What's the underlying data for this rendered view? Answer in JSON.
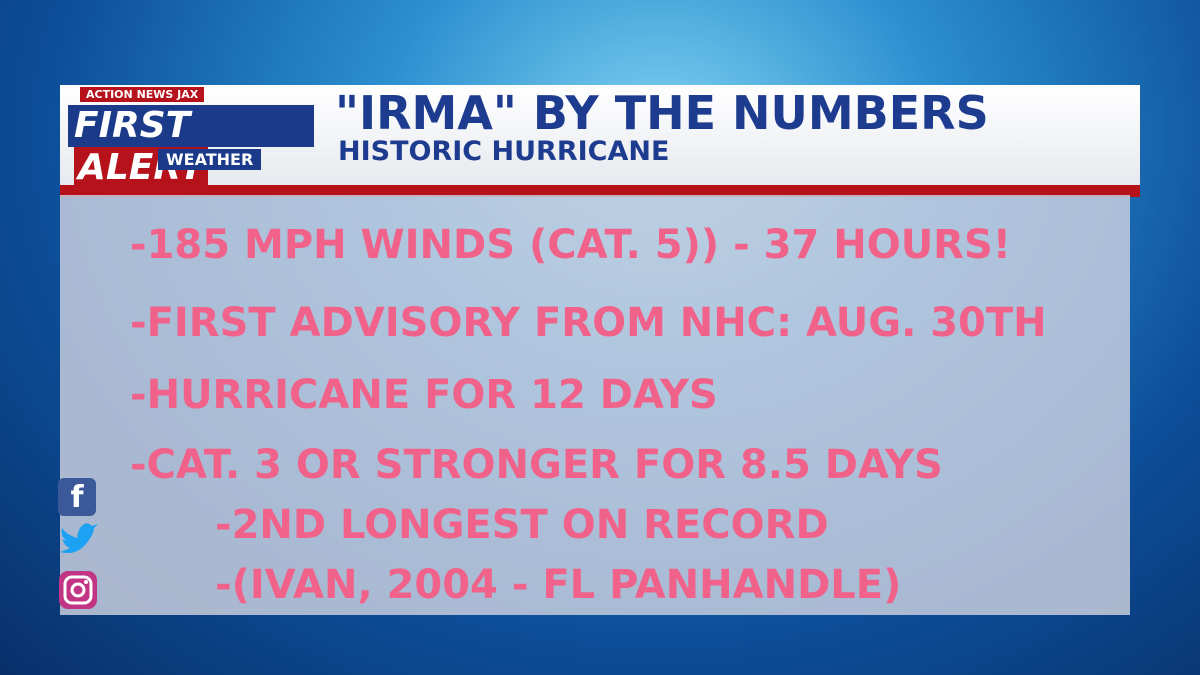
{
  "logo": {
    "top": "ACTION NEWS JAX",
    "main_left": "FIRST",
    "main_right": "ALERT",
    "bottom": "WEATHER"
  },
  "header": {
    "title": "\"IRMA\" BY THE NUMBERS",
    "subtitle": "HISTORIC HURRICANE"
  },
  "items": [
    "-185 MPH WINDS (CAT. 5)) - 37 HOURS!",
    "-FIRST ADVISORY FROM NHC: AUG. 30TH",
    "-HURRICANE FOR 12 DAYS",
    "-CAT. 3 OR STRONGER FOR 8.5 DAYS",
    "-2ND LONGEST ON RECORD",
    "-(IVAN, 2004 - FL PANHANDLE)"
  ],
  "social": {
    "facebook": "f"
  }
}
